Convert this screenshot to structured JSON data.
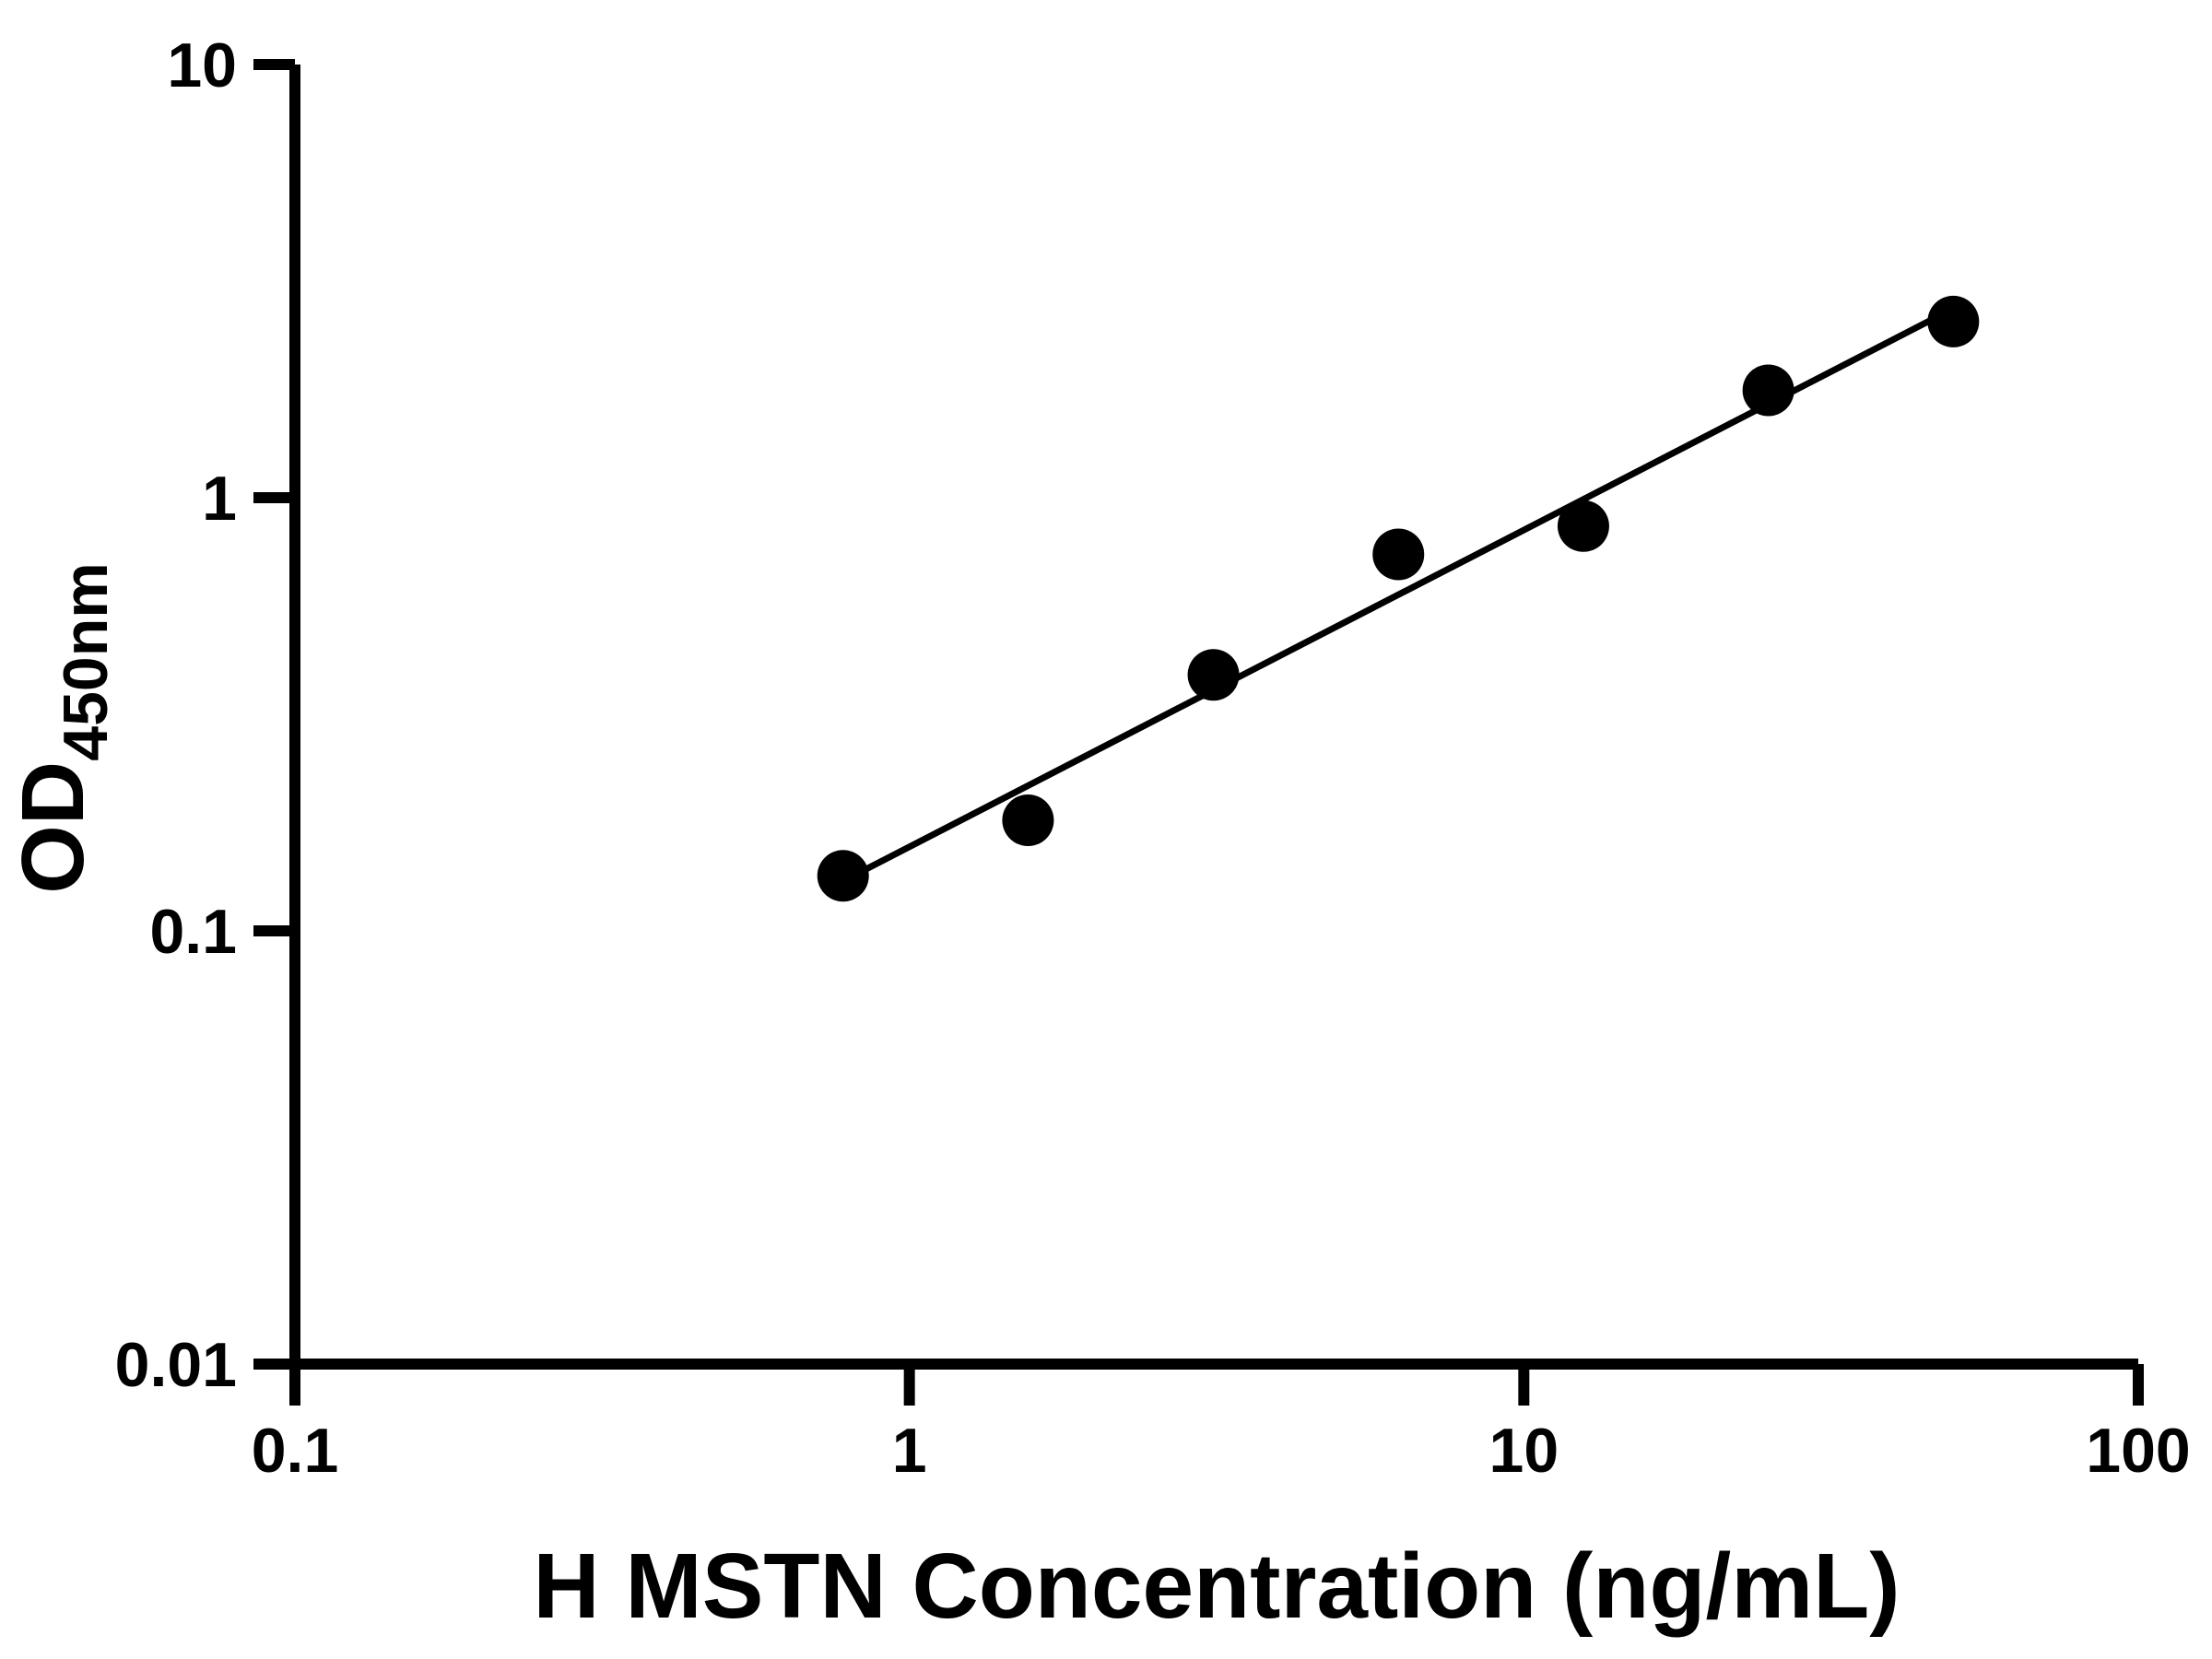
{
  "figure": {
    "background": "#ffffff"
  },
  "chart_data": {
    "type": "scatter",
    "title": "",
    "xlabel": "H MSTN Concentration (ng/mL)",
    "ylabel_main": "OD",
    "ylabel_sub": "450nm",
    "x_scale": "log",
    "y_scale": "log",
    "xlim": [
      0.1,
      100
    ],
    "ylim": [
      0.01,
      10
    ],
    "x_ticks": [
      0.1,
      1,
      10,
      100
    ],
    "x_tick_labels": [
      "0.1",
      "1",
      "10",
      "100"
    ],
    "y_ticks": [
      0.01,
      0.1,
      1,
      10
    ],
    "y_tick_labels": [
      "0.01",
      "0.1",
      "1",
      "10"
    ],
    "points": [
      {
        "x": 0.78,
        "y": 0.134
      },
      {
        "x": 1.56,
        "y": 0.18
      },
      {
        "x": 3.125,
        "y": 0.39
      },
      {
        "x": 6.25,
        "y": 0.74
      },
      {
        "x": 12.5,
        "y": 0.86
      },
      {
        "x": 25,
        "y": 1.77
      },
      {
        "x": 50,
        "y": 2.55
      }
    ],
    "trend_line": {
      "x_start": 0.78,
      "x_end": 50,
      "fit": "log-log linear"
    },
    "marker_color": "#000000",
    "line_color": "#000000",
    "grid": false,
    "legend": false
  }
}
